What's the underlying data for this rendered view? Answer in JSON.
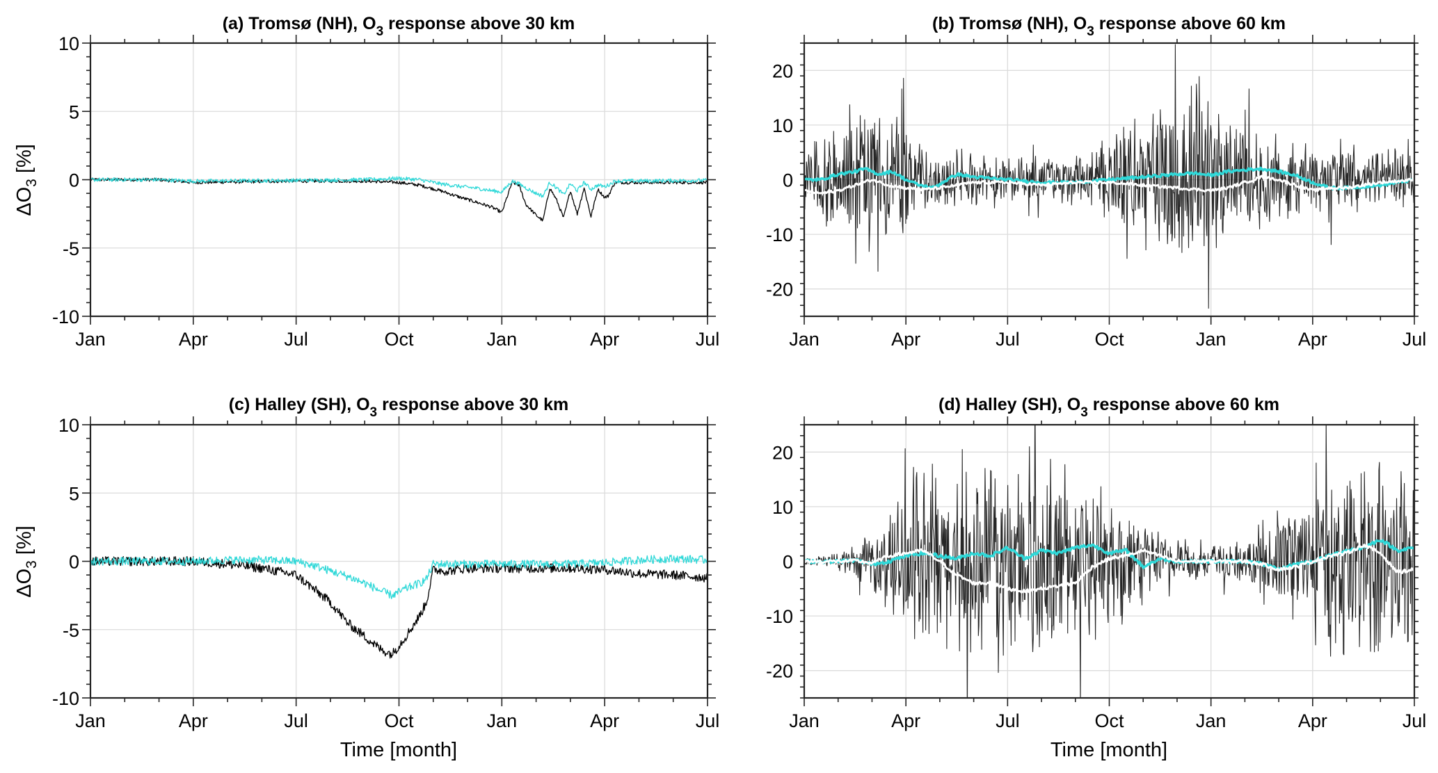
{
  "figure": {
    "shared_xlabel": "Time [month]",
    "ylabel_main": "ΔO",
    "ylabel_sub": "3",
    "ylabel_unit": " [%]",
    "colors": {
      "raw": "#000000",
      "smooth_cyan": "#2fd8d8",
      "smooth_white": "#ffffff",
      "grid": "#dcdcdc"
    }
  },
  "chart_data": [
    {
      "id": "a",
      "type": "line",
      "title_prefix": "(a) Tromsø (NH), O",
      "title_sub": "3",
      "title_suffix": " response above 30 km",
      "xlabel": "",
      "ylabel": "ΔO3 [%]",
      "x_unit": "month index from first Jan",
      "xlim": [
        0,
        18
      ],
      "xticks": [
        0,
        3,
        6,
        9,
        12,
        15,
        18
      ],
      "xtick_labels": [
        "Jan",
        "Apr",
        "Jul",
        "Oct",
        "Jan",
        "Apr",
        "Jul"
      ],
      "ylim": [
        -10,
        10
      ],
      "yticks": [
        -10,
        -5,
        0,
        5,
        10
      ],
      "ytick_labels": [
        "-10",
        "-5",
        "0",
        "5",
        "10"
      ],
      "y_minor_step": 1,
      "grid": true,
      "series": [
        {
          "name": "black",
          "color": "#000000",
          "width": 1.3,
          "noise": 0.12,
          "x": [
            0,
            2,
            3,
            6,
            8,
            9,
            9.6,
            10.2,
            10.8,
            11.2,
            11.7,
            12.0,
            12.3,
            12.5,
            12.7,
            13.0,
            13.2,
            13.4,
            13.6,
            13.8,
            14.0,
            14.2,
            14.4,
            14.6,
            14.8,
            15.0,
            15.1,
            15.3,
            18
          ],
          "y": [
            0,
            0,
            -0.2,
            -0.1,
            -0.1,
            -0.2,
            -0.4,
            -0.8,
            -1.3,
            -1.6,
            -2.0,
            -2.4,
            -0.2,
            -0.4,
            -1.8,
            -2.6,
            -3.0,
            -0.6,
            -1.5,
            -2.8,
            -0.8,
            -2.5,
            -0.6,
            -2.7,
            -0.7,
            -1.3,
            -1.2,
            -0.2,
            -0.2
          ]
        },
        {
          "name": "cyan",
          "color": "#2fd8d8",
          "width": 1.3,
          "noise": 0.14,
          "x": [
            0,
            2,
            3,
            6,
            8,
            9,
            9.6,
            10.2,
            10.8,
            11.2,
            11.7,
            12.0,
            12.3,
            12.5,
            12.7,
            13.0,
            13.2,
            13.4,
            13.6,
            13.8,
            14.0,
            14.2,
            14.4,
            14.6,
            14.8,
            15.0,
            15.1,
            15.3,
            18
          ],
          "y": [
            0,
            0,
            -0.1,
            -0.05,
            0,
            0.1,
            0,
            -0.3,
            -0.5,
            -0.6,
            -0.8,
            -0.9,
            -0.1,
            -0.3,
            -0.6,
            -1.0,
            -1.2,
            -0.2,
            -0.6,
            -1.1,
            -0.3,
            -0.8,
            -0.2,
            -0.7,
            -0.4,
            -0.5,
            -0.4,
            -0.1,
            -0.05
          ]
        }
      ]
    },
    {
      "id": "b",
      "type": "line",
      "title_prefix": "(b) Tromsø (NH), O",
      "title_sub": "3",
      "title_suffix": " response above 60 km",
      "xlabel": "",
      "ylabel": "",
      "x_unit": "month index from first Jan",
      "xlim": [
        0,
        18
      ],
      "xticks": [
        0,
        3,
        6,
        9,
        12,
        15,
        18
      ],
      "xtick_labels": [
        "Jan",
        "Apr",
        "Jul",
        "Oct",
        "Jan",
        "Apr",
        "Jul"
      ],
      "ylim": [
        -25,
        25
      ],
      "yticks": [
        -20,
        -10,
        0,
        10,
        20
      ],
      "ytick_labels": [
        "-20",
        "-10",
        "0",
        "10",
        "20"
      ],
      "y_minor_step": 2,
      "grid": true,
      "raw_envelope": {
        "x": [
          0,
          1,
          2,
          2.8,
          3.5,
          5,
          7,
          8.5,
          10,
          11,
          11.7,
          12.2,
          13,
          14,
          15,
          16.5,
          18
        ],
        "amp": [
          6,
          9,
          13,
          11,
          5,
          4,
          4,
          5,
          12,
          17,
          17,
          12,
          9,
          8,
          6,
          5,
          5
        ]
      },
      "series": [
        {
          "name": "cyan",
          "color": "#2fd8d8",
          "width": 3.5,
          "noise": 0.25,
          "x": [
            0,
            0.5,
            1,
            1.5,
            1.8,
            2.2,
            2.6,
            3.0,
            3.4,
            3.8,
            4.5,
            5,
            6,
            7,
            8,
            9,
            10,
            11,
            11.5,
            12,
            12.5,
            13,
            13.5,
            14,
            14.5,
            15,
            15.5,
            16,
            17,
            18
          ],
          "y": [
            0,
            0,
            1,
            1.5,
            2,
            1,
            1.5,
            0,
            -1,
            -1.5,
            1,
            0.5,
            0,
            -0.5,
            -0.5,
            0,
            0.5,
            1,
            1.2,
            0.8,
            1.5,
            1.8,
            2,
            1.5,
            0.8,
            -0.5,
            -1.5,
            -1.5,
            -1,
            0
          ]
        },
        {
          "name": "white",
          "color": "#ffffff",
          "width": 3,
          "noise": 0.25,
          "x": [
            0,
            0.5,
            1,
            1.5,
            2,
            2.5,
            3,
            3.5,
            4,
            5,
            6,
            7,
            8,
            9,
            10,
            11,
            12,
            12.5,
            13,
            13.5,
            14,
            14.5,
            15,
            15.5,
            16,
            17,
            18
          ],
          "y": [
            -2,
            -2.5,
            -2,
            -1,
            0,
            -1,
            -1.5,
            -1.8,
            -1.5,
            -0.5,
            -0.5,
            -1,
            -0.5,
            -0.5,
            -1,
            -1.5,
            -2,
            -1.5,
            -0.5,
            0.5,
            0,
            -1,
            -2,
            -1.5,
            -1.5,
            -0.5,
            0
          ]
        }
      ]
    },
    {
      "id": "c",
      "type": "line",
      "title_prefix": "(c) Halley (SH), O",
      "title_sub": "3",
      "title_suffix": " response above 30 km",
      "xlabel": "Time [month]",
      "ylabel": "ΔO3 [%]",
      "x_unit": "month index from first Jan",
      "xlim": [
        0,
        18
      ],
      "xticks": [
        0,
        3,
        6,
        9,
        12,
        15,
        18
      ],
      "xtick_labels": [
        "Jan",
        "Apr",
        "Jul",
        "Oct",
        "Jan",
        "Apr",
        "Jul"
      ],
      "ylim": [
        -10,
        10
      ],
      "yticks": [
        -10,
        -5,
        0,
        5,
        10
      ],
      "ytick_labels": [
        "-10",
        "-5",
        "0",
        "5",
        "10"
      ],
      "y_minor_step": 1,
      "grid": true,
      "series": [
        {
          "name": "black",
          "color": "#000000",
          "width": 1.3,
          "noise": 0.35,
          "x": [
            0,
            2.5,
            3,
            4,
            5,
            6,
            6.5,
            7,
            7.5,
            8,
            8.5,
            8.8,
            9.2,
            9.6,
            9.8,
            10.0,
            10.4,
            11,
            12,
            14,
            15,
            16,
            17,
            18
          ],
          "y": [
            0,
            0,
            0,
            -0.2,
            -0.5,
            -1.0,
            -2.0,
            -3.0,
            -4.5,
            -5.5,
            -6.5,
            -6.8,
            -5.5,
            -4.0,
            -3.0,
            -0.6,
            -0.7,
            -0.5,
            -0.5,
            -0.5,
            -0.6,
            -0.9,
            -1.0,
            -1.2
          ]
        },
        {
          "name": "cyan",
          "color": "#2fd8d8",
          "width": 1.3,
          "noise": 0.3,
          "x": [
            0,
            2.5,
            3,
            4,
            5,
            6,
            6.5,
            7,
            7.5,
            8,
            8.5,
            8.8,
            9.2,
            9.6,
            9.8,
            10.0,
            10.4,
            11,
            12,
            14,
            15,
            16,
            17,
            18
          ],
          "y": [
            0,
            0,
            0,
            0.1,
            0.1,
            0,
            -0.3,
            -0.7,
            -1.1,
            -1.6,
            -2.2,
            -2.5,
            -2.0,
            -1.6,
            -1.3,
            -0.2,
            -0.2,
            -0.2,
            -0.2,
            -0.2,
            -0.1,
            0.1,
            0.2,
            0.1
          ]
        }
      ]
    },
    {
      "id": "d",
      "type": "line",
      "title_prefix": "(d) Halley (SH), O",
      "title_sub": "3",
      "title_suffix": " response above 60 km",
      "xlabel": "Time [month]",
      "ylabel": "",
      "x_unit": "month index from first Jan",
      "xlim": [
        0,
        18
      ],
      "xticks": [
        0,
        3,
        6,
        9,
        12,
        15,
        18
      ],
      "xtick_labels": [
        "Jan",
        "Apr",
        "Jul",
        "Oct",
        "Jan",
        "Apr",
        "Jul"
      ],
      "ylim": [
        -25,
        25
      ],
      "yticks": [
        -20,
        -10,
        0,
        10,
        20
      ],
      "ytick_labels": [
        "-20",
        "-10",
        "0",
        "10",
        "20"
      ],
      "y_minor_step": 2,
      "grid": true,
      "raw_envelope": {
        "x": [
          0,
          1,
          1.8,
          2.5,
          3,
          4,
          5,
          6,
          7,
          8,
          9,
          10,
          11,
          12,
          13,
          13.5,
          14,
          15,
          16,
          17,
          18
        ],
        "amp": [
          0.5,
          1.5,
          4,
          8,
          13,
          16,
          18,
          18,
          17,
          16,
          12,
          8,
          4,
          3,
          4,
          7,
          9,
          13,
          18,
          19,
          17
        ]
      },
      "series": [
        {
          "name": "cyan",
          "color": "#2fd8d8",
          "width": 3.5,
          "noise": 0.3,
          "x": [
            0,
            1,
            1.5,
            2,
            2.5,
            3,
            3.5,
            4,
            4.5,
            5,
            5.5,
            6,
            6.5,
            7,
            7.5,
            8,
            8.5,
            9,
            9.5,
            10,
            10.5,
            11,
            12,
            13,
            13.5,
            14,
            14.5,
            15,
            15.5,
            16,
            16.5,
            17,
            17.5,
            18
          ],
          "y": [
            0,
            0,
            0.2,
            -0.5,
            0,
            1,
            1.5,
            1,
            0.5,
            1.5,
            1,
            2.5,
            0.5,
            2,
            1.5,
            2.5,
            3,
            1.5,
            2,
            -1,
            0.5,
            0,
            0,
            0,
            -0.5,
            -1.5,
            -0.5,
            0,
            1,
            2,
            2.5,
            4,
            2,
            2.5
          ]
        },
        {
          "name": "white",
          "color": "#ffffff",
          "width": 3,
          "noise": 0.3,
          "x": [
            0,
            1,
            1.5,
            2,
            2.5,
            3,
            3.5,
            4,
            4.5,
            5,
            5.5,
            6,
            6.5,
            7,
            7.5,
            8,
            8.5,
            9,
            9.5,
            10,
            10.5,
            11,
            12,
            13,
            13.5,
            14,
            14.5,
            15,
            15.5,
            16,
            16.5,
            17,
            17.5,
            18
          ],
          "y": [
            0,
            0,
            0.1,
            -0.3,
            1,
            1.5,
            2,
            0,
            -2.5,
            -4,
            -4,
            -5,
            -5.5,
            -5,
            -4.5,
            -4,
            -1,
            0.5,
            1,
            2,
            1,
            0,
            0,
            0,
            -0.5,
            -1.5,
            -1,
            0,
            1,
            1.5,
            3,
            1.5,
            -2,
            -1.5
          ]
        }
      ]
    }
  ]
}
